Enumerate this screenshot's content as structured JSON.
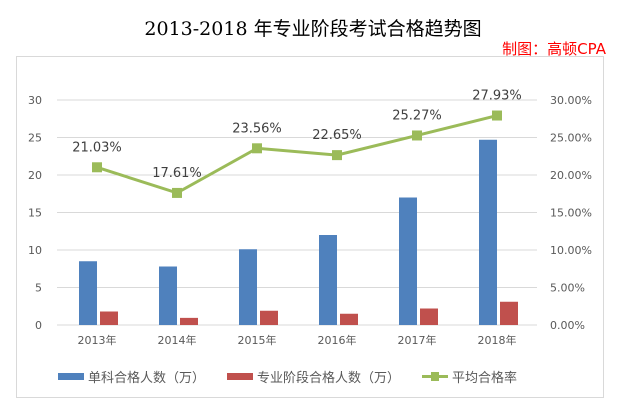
{
  "title": "2013-2018 年专业阶段考试合格趋势图",
  "credit": "制图：高顿CPA",
  "chart_data": {
    "type": "bar+line",
    "title": "2013-2018 年专业阶段考试合格趋势图",
    "categories": [
      "2013年",
      "2014年",
      "2015年",
      "2016年",
      "2017年",
      "2018年"
    ],
    "series": [
      {
        "name": "单科合格人数（万）",
        "type": "bar",
        "axis": "left",
        "color": "#4f81bd",
        "values": [
          8.5,
          7.8,
          10.1,
          12.0,
          17.0,
          24.7
        ]
      },
      {
        "name": "专业阶段合格人数（万）",
        "type": "bar",
        "axis": "right-less",
        "color": "#c0504d",
        "values": [
          1.8,
          0.95,
          1.9,
          1.5,
          2.2,
          3.1
        ]
      },
      {
        "name": "平均合格率",
        "type": "line",
        "axis": "right",
        "color": "#9bbb59",
        "values": [
          21.03,
          17.61,
          23.56,
          22.65,
          25.27,
          27.93
        ],
        "labels": [
          "21.03%",
          "17.61%",
          "23.56%",
          "22.65%",
          "25.27%",
          "27.93%"
        ]
      }
    ],
    "left_axis": {
      "ylim": [
        0,
        30
      ],
      "ticks": [
        "0",
        "5",
        "10",
        "15",
        "20",
        "25",
        "30"
      ]
    },
    "right_axis": {
      "ylim": [
        0,
        30
      ],
      "ticks": [
        "0.00%",
        "5.00%",
        "10.00%",
        "15.00%",
        "20.00%",
        "25.00%",
        "30.00%"
      ]
    },
    "grid": true,
    "legend": "bottom"
  }
}
